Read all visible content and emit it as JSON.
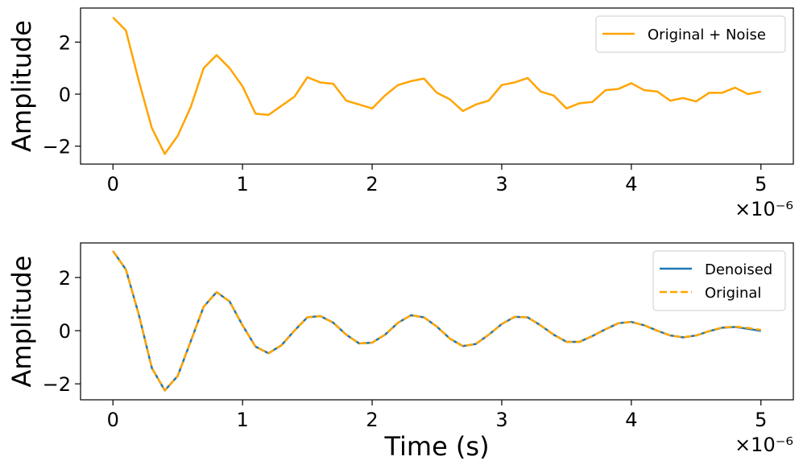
{
  "chart_data": [
    {
      "type": "line",
      "ylabel": "Amplitude",
      "x_offset_label": "×10⁻⁶",
      "legend": "upper right",
      "x": [
        0,
        1e-07,
        2e-07,
        3e-07,
        4e-07,
        5e-07,
        6e-07,
        7e-07,
        8e-07,
        9e-07,
        1e-06,
        1.1e-06,
        1.2e-06,
        1.3e-06,
        1.4e-06,
        1.5e-06,
        1.6e-06,
        1.7e-06,
        1.8e-06,
        1.9e-06,
        2e-06,
        2.1e-06,
        2.2e-06,
        2.3e-06,
        2.4e-06,
        2.5e-06,
        2.6e-06,
        2.7e-06,
        2.8e-06,
        2.9e-06,
        3e-06,
        3.1e-06,
        3.2e-06,
        3.3e-06,
        3.4e-06,
        3.5e-06,
        3.6e-06,
        3.7e-06,
        3.8e-06,
        3.9e-06,
        4e-06,
        4.1e-06,
        4.2e-06,
        4.3e-06,
        4.4e-06,
        4.5e-06,
        4.6e-06,
        4.7e-06,
        4.8e-06,
        4.9e-06,
        5e-06
      ],
      "series": [
        {
          "name": "Original + Noise",
          "color": "#ffa500",
          "linestyle": "solid",
          "values": [
            2.95,
            2.45,
            0.5,
            -1.3,
            -2.3,
            -1.6,
            -0.5,
            1.0,
            1.5,
            1.0,
            0.3,
            -0.75,
            -0.8,
            -0.45,
            -0.1,
            0.65,
            0.45,
            0.4,
            -0.25,
            -0.4,
            -0.55,
            -0.05,
            0.35,
            0.5,
            0.6,
            0.05,
            -0.2,
            -0.65,
            -0.4,
            -0.25,
            0.35,
            0.45,
            0.62,
            0.1,
            -0.05,
            -0.55,
            -0.35,
            -0.3,
            0.15,
            0.2,
            0.42,
            0.15,
            0.1,
            -0.25,
            -0.15,
            -0.28,
            0.05,
            0.05,
            0.25,
            0.0,
            0.1
          ]
        }
      ],
      "xlim": [
        -2.5e-07,
        5.25e-06
      ],
      "ylim": [
        -2.69,
        3.31
      ],
      "xticks": [
        {
          "value": 0,
          "label": "0"
        },
        {
          "value": 1e-06,
          "label": "1"
        },
        {
          "value": 2e-06,
          "label": "2"
        },
        {
          "value": 3e-06,
          "label": "3"
        },
        {
          "value": 4e-06,
          "label": "4"
        },
        {
          "value": 5e-06,
          "label": "5"
        }
      ],
      "yticks": [
        {
          "value": -2,
          "label": "−2"
        },
        0,
        2
      ]
    },
    {
      "type": "line",
      "ylabel": "Amplitude",
      "xlabel": "Time (s)",
      "x_offset_label": "×10⁻⁶",
      "legend": "upper right",
      "x": [
        0,
        1e-07,
        2e-07,
        3e-07,
        4e-07,
        5e-07,
        6e-07,
        7e-07,
        8e-07,
        9e-07,
        1e-06,
        1.1e-06,
        1.2e-06,
        1.3e-06,
        1.4e-06,
        1.5e-06,
        1.6e-06,
        1.7e-06,
        1.8e-06,
        1.9e-06,
        2e-06,
        2.1e-06,
        2.2e-06,
        2.3e-06,
        2.4e-06,
        2.5e-06,
        2.6e-06,
        2.7e-06,
        2.8e-06,
        2.9e-06,
        3e-06,
        3.1e-06,
        3.2e-06,
        3.3e-06,
        3.4e-06,
        3.5e-06,
        3.6e-06,
        3.7e-06,
        3.8e-06,
        3.9e-06,
        4e-06,
        4.1e-06,
        4.2e-06,
        4.3e-06,
        4.4e-06,
        4.5e-06,
        4.6e-06,
        4.7e-06,
        4.8e-06,
        4.9e-06,
        5e-06
      ],
      "series": [
        {
          "name": "Denoised",
          "color": "#1f77b4",
          "linestyle": "solid",
          "values": [
            3.0,
            2.3,
            0.6,
            -1.4,
            -2.25,
            -1.7,
            -0.4,
            0.9,
            1.45,
            1.1,
            0.2,
            -0.6,
            -0.85,
            -0.55,
            0.0,
            0.5,
            0.55,
            0.3,
            -0.15,
            -0.48,
            -0.45,
            -0.15,
            0.3,
            0.58,
            0.5,
            0.15,
            -0.3,
            -0.58,
            -0.5,
            -0.15,
            0.25,
            0.52,
            0.5,
            0.2,
            -0.15,
            -0.42,
            -0.42,
            -0.2,
            0.05,
            0.28,
            0.33,
            0.2,
            0.0,
            -0.18,
            -0.25,
            -0.18,
            -0.02,
            0.11,
            0.14,
            0.07,
            -0.01
          ]
        },
        {
          "name": "Original",
          "color": "#ffa500",
          "linestyle": "dashed",
          "values": [
            3.0,
            2.3,
            0.6,
            -1.4,
            -2.25,
            -1.7,
            -0.4,
            0.9,
            1.45,
            1.1,
            0.2,
            -0.6,
            -0.85,
            -0.55,
            0.0,
            0.5,
            0.55,
            0.3,
            -0.15,
            -0.48,
            -0.45,
            -0.15,
            0.3,
            0.58,
            0.5,
            0.15,
            -0.3,
            -0.58,
            -0.5,
            -0.15,
            0.25,
            0.52,
            0.5,
            0.2,
            -0.15,
            -0.42,
            -0.42,
            -0.2,
            0.05,
            0.28,
            0.33,
            0.2,
            0.0,
            -0.18,
            -0.25,
            -0.18,
            -0.02,
            0.12,
            0.15,
            0.1,
            0.03
          ]
        }
      ],
      "xlim": [
        -2.5e-07,
        5.25e-06
      ],
      "ylim": [
        -2.6,
        3.3
      ],
      "xticks": [
        {
          "value": 0,
          "label": "0"
        },
        {
          "value": 1e-06,
          "label": "1"
        },
        {
          "value": 2e-06,
          "label": "2"
        },
        {
          "value": 3e-06,
          "label": "3"
        },
        {
          "value": 4e-06,
          "label": "4"
        },
        {
          "value": 5e-06,
          "label": "5"
        }
      ],
      "yticks": [
        {
          "value": -2,
          "label": "−2"
        },
        0,
        2
      ]
    }
  ]
}
